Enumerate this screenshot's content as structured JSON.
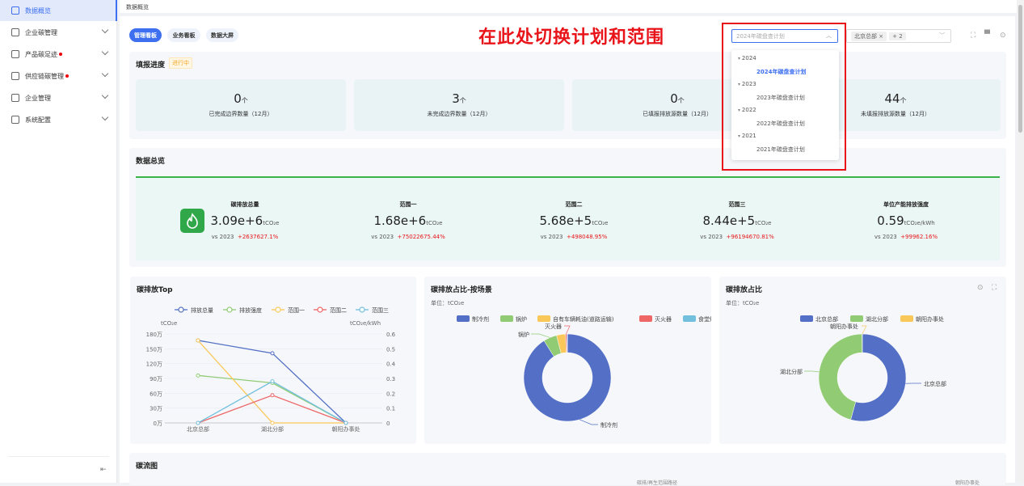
{
  "sidebar": {
    "items": [
      {
        "label": "数据概览",
        "icon": "dashboard-icon",
        "active": true
      },
      {
        "label": "企业碳管理",
        "icon": "factory-icon",
        "expandable": true
      },
      {
        "label": "产品碳足迹",
        "icon": "box-icon",
        "expandable": true,
        "dot": true
      },
      {
        "label": "供应链碳管理",
        "icon": "store-icon",
        "expandable": true,
        "dot": true
      },
      {
        "label": "企业管理",
        "icon": "building-icon",
        "expandable": true
      },
      {
        "label": "系统配置",
        "icon": "settings-window-icon",
        "expandable": true
      }
    ],
    "collapse_icon": "collapse-menu-icon"
  },
  "breadcrumb": "数据概览",
  "tabs": [
    "管理看板",
    "业务看板",
    "数据大屏"
  ],
  "annotation": "在此处切换计划和范围",
  "plan_select": {
    "placeholder": "2024年碳盘查计划",
    "open": true,
    "groups": [
      {
        "year": "2024",
        "plan": "2024年碳盘查计划",
        "selected": true
      },
      {
        "year": "2023",
        "plan": "2023年碳盘查计划"
      },
      {
        "year": "2022",
        "plan": "2022年碳盘查计划"
      },
      {
        "year": "2021",
        "plan": "2021年碳盘查计划"
      }
    ]
  },
  "scope_select": {
    "tag": "北京总部",
    "more": "+ 2"
  },
  "toolbar_icons": [
    "fullscreen-icon",
    "monitor-icon",
    "settings-icon"
  ],
  "progress": {
    "title": "填报进度",
    "status": "进行中",
    "unit": "个",
    "cards": [
      {
        "value": "0",
        "label": "已完成边界数量（12月）"
      },
      {
        "value": "3",
        "label": "未完成边界数量（12月）"
      },
      {
        "value": "0",
        "label": "已填报排放源数量（12月）"
      },
      {
        "value": "44",
        "label": "未填报排放源数量（12月）"
      }
    ]
  },
  "overview": {
    "title": "数据总览",
    "accent": "#30a84a",
    "items": [
      {
        "title": "碳排放总量",
        "value": "3.09e+6",
        "unit": "tCO₂e",
        "compare": "vs 2023",
        "change": "+2637627.1%"
      },
      {
        "title": "范围一",
        "value": "1.68e+6",
        "unit": "tCO₂e",
        "compare": "vs 2023",
        "change": "+75022675.44%"
      },
      {
        "title": "范围二",
        "value": "5.68e+5",
        "unit": "tCO₂e",
        "compare": "vs 2023",
        "change": "+498048.95%"
      },
      {
        "title": "范围三",
        "value": "8.44e+5",
        "unit": "tCO₂e",
        "compare": "vs 2023",
        "change": "+96194670.81%"
      },
      {
        "title": "单位产能排放强度",
        "value": "0.59",
        "unit": "tCO₂e/kWh",
        "compare": "vs 2023",
        "change": "+99962.16%"
      }
    ]
  },
  "flow": {
    "title": "碳流图",
    "partial_labels": [
      "碳排/再生范围路径",
      "朝阳办事处"
    ]
  },
  "chart_data": [
    {
      "type": "line",
      "title": "碳排放Top",
      "categories": [
        "北京总部",
        "湖北分部",
        "朝阳办事处"
      ],
      "ylabel": "tCO₂e",
      "ylabel_right": "tCO₂e/kWh",
      "ylim": [
        0,
        180
      ],
      "ylim_right": [
        0,
        0.6
      ],
      "yticks": [
        "0万",
        "30万",
        "60万",
        "90万",
        "120万",
        "150万",
        "180万"
      ],
      "yticks_right": [
        "0",
        "0.1",
        "0.2",
        "0.3",
        "0.4",
        "0.5",
        "0.6"
      ],
      "legend": "top",
      "grid": true,
      "series": [
        {
          "name": "排放总量",
          "axis": "left",
          "values": [
            167,
            141,
            0
          ],
          "color": "#5470c6"
        },
        {
          "name": "排放强度",
          "axis": "right",
          "values": [
            0.32,
            0.27,
            0
          ],
          "color": "#91cc75"
        },
        {
          "name": "范围一",
          "axis": "left",
          "values": [
            167,
            0,
            0
          ],
          "color": "#fac858"
        },
        {
          "name": "范围二",
          "axis": "left",
          "values": [
            0,
            56,
            0
          ],
          "color": "#ee6666"
        },
        {
          "name": "范围三",
          "axis": "left",
          "values": [
            0,
            84,
            0
          ],
          "color": "#73c0de"
        }
      ]
    },
    {
      "type": "pie",
      "title": "碳排放占比-按场景",
      "subtitle": "单位：tCO₂e",
      "legend": "top",
      "donut": true,
      "labels": [
        "制冷剂",
        "锅炉",
        "自有车辆耗油(道路运输)",
        "灭火器",
        "食堂炉灶"
      ],
      "values": [
        91,
        5,
        3.3,
        0.5,
        0.2
      ],
      "colors": [
        "#5470c6",
        "#91cc75",
        "#fac858",
        "#ee6666",
        "#73c0de"
      ],
      "shown_labels": [
        "制冷剂",
        "锅炉",
        "灭火器"
      ]
    },
    {
      "type": "pie",
      "title": "碳排放占比",
      "subtitle": "单位：tCO₂e",
      "legend": "top",
      "donut": true,
      "labels": [
        "北京总部",
        "湖北分部",
        "朝阳办事处"
      ],
      "values": [
        54.3,
        45.6,
        0.1
      ],
      "colors": [
        "#5470c6",
        "#91cc75",
        "#fac858"
      ],
      "shown_labels": [
        "北京总部",
        "湖北分部",
        "朝阳办事处"
      ]
    }
  ]
}
